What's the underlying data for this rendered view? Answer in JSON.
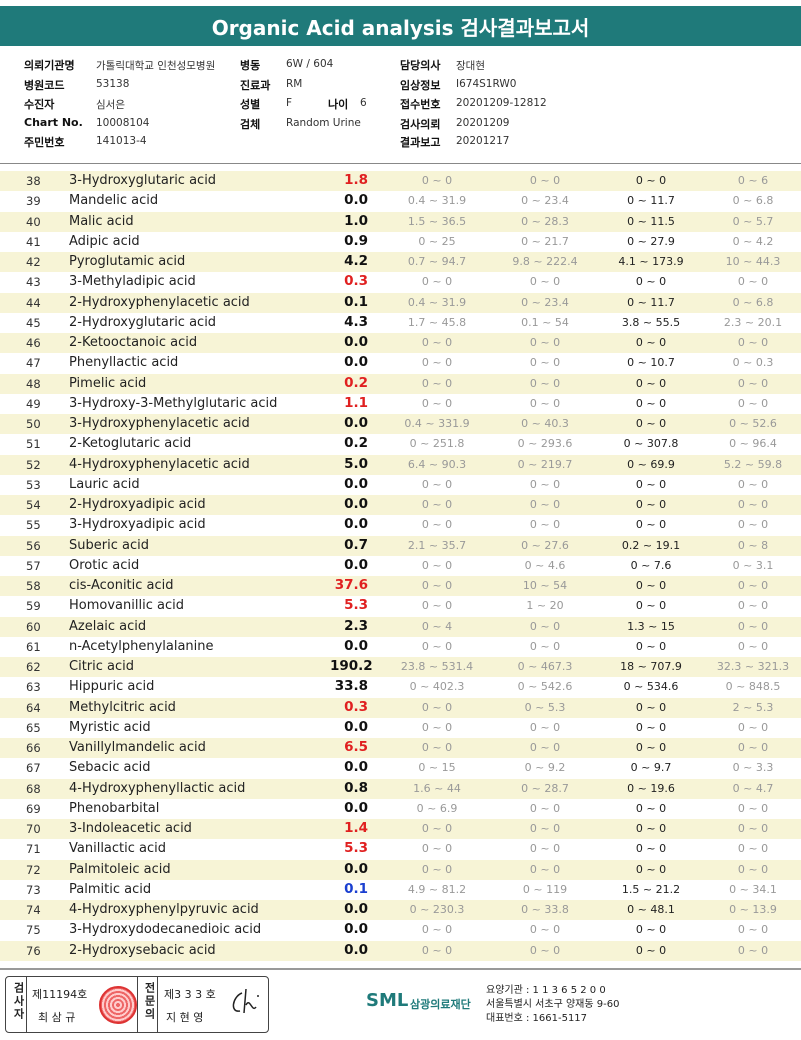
{
  "title": "Organic Acid analysis 검사결과보고서",
  "header": {
    "institution_label": "의뢰기관명",
    "institution": "가톨릭대학교 인천성모병원",
    "ward_label": "병동",
    "ward": "6W / 604",
    "doctor_label": "담당의사",
    "doctor": "장대현",
    "hospcode_label": "병원코드",
    "hospcode": "53138",
    "dept_label": "진료과",
    "dept": "RM",
    "clinical_label": "임상정보",
    "clinical": "I674S1RW0",
    "collector_label": "수진자",
    "collector": "심서은",
    "sex_label": "성별",
    "sex": "F",
    "age_label": "나이",
    "age": "6",
    "receipt_label": "접수번호",
    "receipt": "20201209-12812",
    "chart_label": "Chart No.",
    "chart": "10008104",
    "specimen_label": "검체",
    "specimen": "Random Urine",
    "request_label": "검사의뢰",
    "request": "20201209",
    "idnum_label": "주민번호",
    "idnum": "141013-4",
    "report_label": "결과보고",
    "report": "20201217"
  },
  "rows": [
    {
      "no": "38",
      "name": "3-Hydroxyglutaric acid",
      "value": "1.8",
      "flag": "high",
      "r1": "0 ~ 0",
      "r2": "0 ~ 0",
      "r3": "0 ~ 0",
      "r4": "0 ~ 6"
    },
    {
      "no": "39",
      "name": "Mandelic acid",
      "value": "0.0",
      "flag": "normal",
      "r1": "0.4 ~ 31.9",
      "r2": "0 ~ 23.4",
      "r3": "0 ~ 11.7",
      "r4": "0 ~ 6.8"
    },
    {
      "no": "40",
      "name": "Malic acid",
      "value": "1.0",
      "flag": "normal",
      "r1": "1.5 ~ 36.5",
      "r2": "0 ~ 28.3",
      "r3": "0 ~ 11.5",
      "r4": "0 ~ 5.7"
    },
    {
      "no": "41",
      "name": "Adipic acid",
      "value": "0.9",
      "flag": "normal",
      "r1": "0 ~ 25",
      "r2": "0 ~ 21.7",
      "r3": "0 ~ 27.9",
      "r4": "0 ~ 4.2"
    },
    {
      "no": "42",
      "name": "Pyroglutamic acid",
      "value": "4.2",
      "flag": "normal",
      "r1": "0.7 ~ 94.7",
      "r2": "9.8 ~ 222.4",
      "r3": "4.1 ~ 173.9",
      "r4": "10 ~ 44.3"
    },
    {
      "no": "43",
      "name": "3-Methyladipic acid",
      "value": "0.3",
      "flag": "high",
      "r1": "0 ~ 0",
      "r2": "0 ~ 0",
      "r3": "0 ~ 0",
      "r4": "0 ~ 0"
    },
    {
      "no": "44",
      "name": "2-Hydroxyphenylacetic acid",
      "value": "0.1",
      "flag": "normal",
      "r1": "0.4 ~ 31.9",
      "r2": "0 ~ 23.4",
      "r3": "0 ~ 11.7",
      "r4": "0 ~ 6.8"
    },
    {
      "no": "45",
      "name": "2-Hydroxyglutaric acid",
      "value": "4.3",
      "flag": "normal",
      "r1": "1.7 ~ 45.8",
      "r2": "0.1 ~ 54",
      "r3": "3.8 ~ 55.5",
      "r4": "2.3 ~ 20.1"
    },
    {
      "no": "46",
      "name": "2-Ketooctanoic acid",
      "value": "0.0",
      "flag": "normal",
      "r1": "0 ~ 0",
      "r2": "0 ~ 0",
      "r3": "0 ~ 0",
      "r4": "0 ~ 0"
    },
    {
      "no": "47",
      "name": "Phenyllactic acid",
      "value": "0.0",
      "flag": "normal",
      "r1": "0 ~ 0",
      "r2": "0 ~ 0",
      "r3": "0 ~ 10.7",
      "r4": "0 ~ 0.3"
    },
    {
      "no": "48",
      "name": "Pimelic acid",
      "value": "0.2",
      "flag": "high",
      "r1": "0 ~ 0",
      "r2": "0 ~ 0",
      "r3": "0 ~ 0",
      "r4": "0 ~ 0"
    },
    {
      "no": "49",
      "name": "3-Hydroxy-3-Methylglutaric acid",
      "value": "1.1",
      "flag": "high",
      "r1": "0 ~ 0",
      "r2": "0 ~ 0",
      "r3": "0 ~ 0",
      "r4": "0 ~ 0"
    },
    {
      "no": "50",
      "name": "3-Hydroxyphenylacetic acid",
      "value": "0.0",
      "flag": "normal",
      "r1": "0.4 ~ 331.9",
      "r2": "0 ~ 40.3",
      "r3": "0 ~ 0",
      "r4": "0 ~ 52.6"
    },
    {
      "no": "51",
      "name": "2-Ketoglutaric acid",
      "value": "0.2",
      "flag": "normal",
      "r1": "0 ~ 251.8",
      "r2": "0 ~ 293.6",
      "r3": "0 ~ 307.8",
      "r4": "0 ~ 96.4"
    },
    {
      "no": "52",
      "name": "4-Hydroxyphenylacetic acid",
      "value": "5.0",
      "flag": "normal",
      "r1": "6.4 ~ 90.3",
      "r2": "0 ~ 219.7",
      "r3": "0 ~ 69.9",
      "r4": "5.2 ~ 59.8"
    },
    {
      "no": "53",
      "name": "Lauric acid",
      "value": "0.0",
      "flag": "normal",
      "r1": "0 ~ 0",
      "r2": "0 ~ 0",
      "r3": "0 ~ 0",
      "r4": "0 ~ 0"
    },
    {
      "no": "54",
      "name": "2-Hydroxyadipic acid",
      "value": "0.0",
      "flag": "normal",
      "r1": "0 ~ 0",
      "r2": "0 ~ 0",
      "r3": "0 ~ 0",
      "r4": "0 ~ 0"
    },
    {
      "no": "55",
      "name": "3-Hydroxyadipic acid",
      "value": "0.0",
      "flag": "normal",
      "r1": "0 ~ 0",
      "r2": "0 ~ 0",
      "r3": "0 ~ 0",
      "r4": "0 ~ 0"
    },
    {
      "no": "56",
      "name": "Suberic acid",
      "value": "0.7",
      "flag": "normal",
      "r1": "2.1 ~ 35.7",
      "r2": "0 ~ 27.6",
      "r3": "0.2 ~ 19.1",
      "r4": "0 ~ 8"
    },
    {
      "no": "57",
      "name": "Orotic acid",
      "value": "0.0",
      "flag": "normal",
      "r1": "0 ~ 0",
      "r2": "0 ~ 4.6",
      "r3": "0 ~ 7.6",
      "r4": "0 ~ 3.1"
    },
    {
      "no": "58",
      "name": "cis-Aconitic acid",
      "value": "37.6",
      "flag": "high",
      "r1": "0 ~ 0",
      "r2": "10 ~ 54",
      "r3": "0 ~ 0",
      "r4": "0 ~ 0"
    },
    {
      "no": "59",
      "name": "Homovanillic acid",
      "value": "5.3",
      "flag": "high",
      "r1": "0 ~ 0",
      "r2": "1 ~ 20",
      "r3": "0 ~ 0",
      "r4": "0 ~ 0"
    },
    {
      "no": "60",
      "name": "Azelaic acid",
      "value": "2.3",
      "flag": "normal",
      "r1": "0 ~ 4",
      "r2": "0 ~ 0",
      "r3": "1.3 ~ 15",
      "r4": "0 ~ 0"
    },
    {
      "no": "61",
      "name": "n-Acetylphenylalanine",
      "value": "0.0",
      "flag": "normal",
      "r1": "0 ~ 0",
      "r2": "0 ~ 0",
      "r3": "0 ~ 0",
      "r4": "0 ~ 0"
    },
    {
      "no": "62",
      "name": "Citric acid",
      "value": "190.2",
      "flag": "normal",
      "r1": "23.8 ~ 531.4",
      "r2": "0 ~ 467.3",
      "r3": "18 ~ 707.9",
      "r4": "32.3 ~ 321.3"
    },
    {
      "no": "63",
      "name": "Hippuric acid",
      "value": "33.8",
      "flag": "normal",
      "r1": "0 ~ 402.3",
      "r2": "0 ~ 542.6",
      "r3": "0 ~ 534.6",
      "r4": "0 ~ 848.5"
    },
    {
      "no": "64",
      "name": "Methylcitric acid",
      "value": "0.3",
      "flag": "high",
      "r1": "0 ~ 0",
      "r2": "0 ~ 5.3",
      "r3": "0 ~ 0",
      "r4": "2 ~ 5.3"
    },
    {
      "no": "65",
      "name": "Myristic acid",
      "value": "0.0",
      "flag": "normal",
      "r1": "0 ~ 0",
      "r2": "0 ~ 0",
      "r3": "0 ~ 0",
      "r4": "0 ~ 0"
    },
    {
      "no": "66",
      "name": "Vanillylmandelic acid",
      "value": "6.5",
      "flag": "high",
      "r1": "0 ~ 0",
      "r2": "0 ~ 0",
      "r3": "0 ~ 0",
      "r4": "0 ~ 0"
    },
    {
      "no": "67",
      "name": "Sebacic acid",
      "value": "0.0",
      "flag": "normal",
      "r1": "0 ~ 15",
      "r2": "0 ~ 9.2",
      "r3": "0 ~ 9.7",
      "r4": "0 ~ 3.3"
    },
    {
      "no": "68",
      "name": "4-Hydroxyphenyllactic acid",
      "value": "0.8",
      "flag": "normal",
      "r1": "1.6 ~ 44",
      "r2": "0 ~ 28.7",
      "r3": "0 ~ 19.6",
      "r4": "0 ~ 4.7"
    },
    {
      "no": "69",
      "name": "Phenobarbital",
      "value": "0.0",
      "flag": "normal",
      "r1": "0 ~ 6.9",
      "r2": "0 ~ 0",
      "r3": "0 ~ 0",
      "r4": "0 ~ 0"
    },
    {
      "no": "70",
      "name": "3-Indoleacetic acid",
      "value": "1.4",
      "flag": "high",
      "r1": "0 ~ 0",
      "r2": "0 ~ 0",
      "r3": "0 ~ 0",
      "r4": "0 ~ 0"
    },
    {
      "no": "71",
      "name": "Vanillactic acid",
      "value": "5.3",
      "flag": "high",
      "r1": "0 ~ 0",
      "r2": "0 ~ 0",
      "r3": "0 ~ 0",
      "r4": "0 ~ 0"
    },
    {
      "no": "72",
      "name": "Palmitoleic acid",
      "value": "0.0",
      "flag": "normal",
      "r1": "0 ~ 0",
      "r2": "0 ~ 0",
      "r3": "0 ~ 0",
      "r4": "0 ~ 0"
    },
    {
      "no": "73",
      "name": "Palmitic acid",
      "value": "0.1",
      "flag": "low",
      "r1": "4.9 ~ 81.2",
      "r2": "0 ~ 119",
      "r3": "1.5 ~ 21.2",
      "r4": "0 ~ 34.1"
    },
    {
      "no": "74",
      "name": "4-Hydroxyphenylpyruvic acid",
      "value": "0.0",
      "flag": "normal",
      "r1": "0 ~ 230.3",
      "r2": "0 ~ 33.8",
      "r3": "0 ~ 48.1",
      "r4": "0 ~ 13.9"
    },
    {
      "no": "75",
      "name": "3-Hydroxydodecanedioic acid",
      "value": "0.0",
      "flag": "normal",
      "r1": "0 ~ 0",
      "r2": "0 ~ 0",
      "r3": "0 ~ 0",
      "r4": "0 ~ 0"
    },
    {
      "no": "76",
      "name": "2-Hydroxysebacic acid",
      "value": "0.0",
      "flag": "normal",
      "r1": "0 ~ 0",
      "r2": "0 ~ 0",
      "r3": "0 ~ 0",
      "r4": "0 ~ 0"
    }
  ],
  "footer": {
    "inspector_label": "검사자",
    "inspector_no": "제11194호",
    "inspector_name": "최 삼 규",
    "specialist_label": "전문의",
    "specialist_no": "제3 3 3 호",
    "specialist_name": "지 현 영",
    "logo": "SML",
    "org_name": "삼광의료재단",
    "info1": "요양기관 : 1 1 3 6 5 2 0 0",
    "info2": "서울특별시 서초구 양재동 9-60",
    "info3": "대표번호 : 1661-5117"
  },
  "colors": {
    "header_bar": "#1f7a7a",
    "high": "#e02020",
    "low": "#1a3fd0",
    "normal": "#111111",
    "alt_row": "#f7f4d6"
  }
}
